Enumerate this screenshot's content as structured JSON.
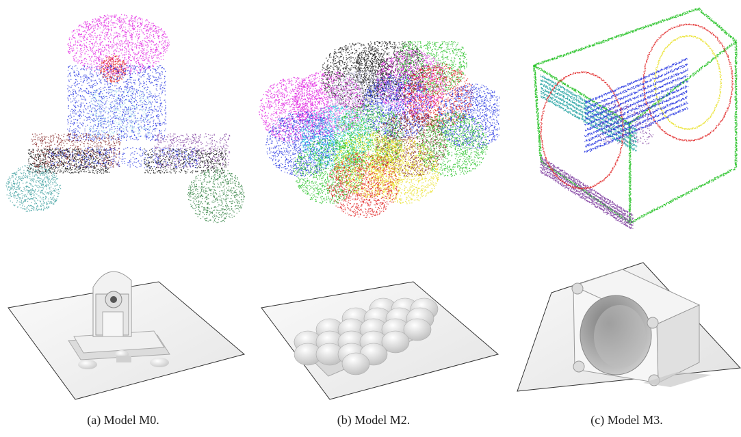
{
  "figure": {
    "panels": [
      {
        "id": "a",
        "caption": "(a) Model M0.",
        "model": "M0"
      },
      {
        "id": "b",
        "caption": "(b) Model M2.",
        "model": "M2"
      },
      {
        "id": "c",
        "caption": "(c) Model M3.",
        "model": "M3"
      }
    ]
  },
  "colors": {
    "magenta": "#e020e0",
    "blue": "#2030e0",
    "red": "#e02020",
    "green": "#20c020",
    "yellow": "#e8e020",
    "cyan": "#20d0e0",
    "black": "#101010",
    "brown": "#802020",
    "teal": "#40a0a0",
    "purple": "#8040a0",
    "darkgreen": "#308040"
  }
}
